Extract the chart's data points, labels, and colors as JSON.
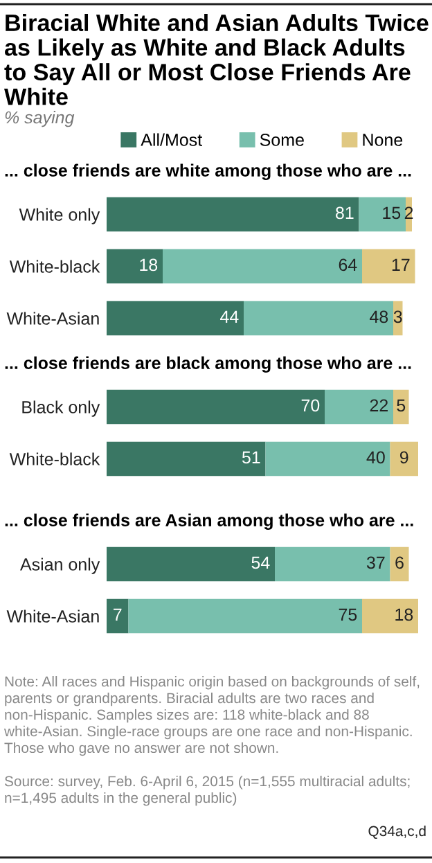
{
  "chart_data": [
    {
      "type": "bar",
      "orientation": "horizontal",
      "stacked": true,
      "data_labels": true,
      "legend": "top",
      "tick_labels": "y",
      "xlim": [
        0,
        100
      ],
      "title": "Biracial White and Asian Adults Twice as Likely as White and Black Adults to Say All or Most Close Friends Are White",
      "subtitle": "% saying",
      "xlabel": "... close friends are white among those who are ...",
      "categories": [
        "White only",
        "White-black",
        "White-Asian"
      ],
      "series": [
        {
          "name": "All/Most",
          "color": "#3a7764",
          "values": [
            81,
            18,
            44
          ]
        },
        {
          "name": "Some",
          "color": "#78bfad",
          "values": [
            15,
            64,
            48
          ]
        },
        {
          "name": "None",
          "color": "#e0c882",
          "values": [
            2,
            17,
            3
          ]
        }
      ]
    },
    {
      "type": "bar",
      "orientation": "horizontal",
      "stacked": true,
      "data_labels": true,
      "tick_labels": "y",
      "xlim": [
        0,
        100
      ],
      "xlabel": "... close friends are black among those who are ...",
      "categories": [
        "Black only",
        "White-black"
      ],
      "series": [
        {
          "color": "#3a7764",
          "values": [
            70,
            51
          ]
        },
        {
          "color": "#78bfad",
          "values": [
            22,
            40
          ]
        },
        {
          "color": "#e0c882",
          "values": [
            5,
            9
          ]
        }
      ]
    },
    {
      "type": "bar",
      "orientation": "horizontal",
      "stacked": true,
      "data_labels": true,
      "tick_labels": "y",
      "xlim": [
        0,
        100
      ],
      "xlabel": "... close friends are Asian among those who are ...",
      "categories": [
        "Asian only",
        "White-Asian"
      ],
      "series": [
        {
          "color": "#3a7764",
          "values": [
            54,
            7
          ]
        },
        {
          "color": "#78bfad",
          "values": [
            37,
            75
          ]
        },
        {
          "color": "#e0c882",
          "values": [
            6,
            18
          ]
        }
      ],
      "annotations": [
        "Note: All races and Hispanic origin based on backgrounds of self, parents or grandparents. Biracial adults are two races and non-Hispanic. Samples sizes are: 118 white-black and 88 white-Asian. Single-race groups are one race and non-Hispanic. Those who gave no answer are not shown.",
        "Source: survey, Feb. 6-April 6, 2015 (n=1,555 multiracial adults; n=1,495 adults in the general public)",
        "Q34a,c,d"
      ]
    }
  ]
}
